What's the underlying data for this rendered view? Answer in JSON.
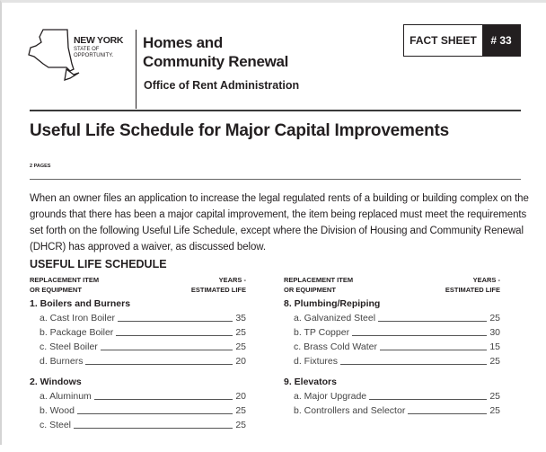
{
  "header": {
    "logo": {
      "line1": "NEW YORK",
      "line2": "STATE OF",
      "line3": "OPPORTUNITY."
    },
    "org_line1": "Homes and",
    "org_line2": "Community Renewal",
    "office": "Office of Rent Administration",
    "fact_sheet_label": "FACT SHEET",
    "fact_sheet_number": "# 33"
  },
  "title": "Useful Life Schedule for Major Capital Improvements",
  "pages": "2 PAGES",
  "intro": "When an owner files an application to increase the legal regulated rents of a building or building complex on the grounds that there has been a major capital improvement, the item being replaced must meet the requirements set forth on the following Useful Life Schedule, except where the Division of Housing and Community Renewal (DHCR) has approved a waiver, as discussed below.",
  "schedule": {
    "heading": "USEFUL LIFE SCHEDULE",
    "col_item_1": "REPLACEMENT ITEM",
    "col_item_2": "OR EQUIPMENT",
    "col_years_1": "YEARS -",
    "col_years_2": "ESTIMATED LIFE",
    "left": [
      {
        "title": "1. Boilers and Burners",
        "items": [
          {
            "label": "a. Cast Iron Boiler",
            "years": "35"
          },
          {
            "label": "b. Package Boiler",
            "years": "25"
          },
          {
            "label": "c. Steel Boiler",
            "years": "25"
          },
          {
            "label": "d. Burners",
            "years": "20"
          }
        ]
      },
      {
        "title": "2. Windows",
        "items": [
          {
            "label": "a. Aluminum",
            "years": "20"
          },
          {
            "label": "b. Wood",
            "years": "25"
          },
          {
            "label": "c. Steel",
            "years": "25"
          }
        ]
      }
    ],
    "right": [
      {
        "title": "8. Plumbing/Repiping",
        "items": [
          {
            "label": "a. Galvanized Steel",
            "years": "25"
          },
          {
            "label": "b. TP Copper",
            "years": "30"
          },
          {
            "label": "c. Brass Cold Water",
            "years": "15"
          },
          {
            "label": "d. Fixtures",
            "years": "25"
          }
        ]
      },
      {
        "title": "9. Elevators",
        "items": [
          {
            "label": "a. Major Upgrade",
            "years": "25"
          },
          {
            "label": "b. Controllers and Selector",
            "years": "25"
          }
        ]
      }
    ]
  }
}
